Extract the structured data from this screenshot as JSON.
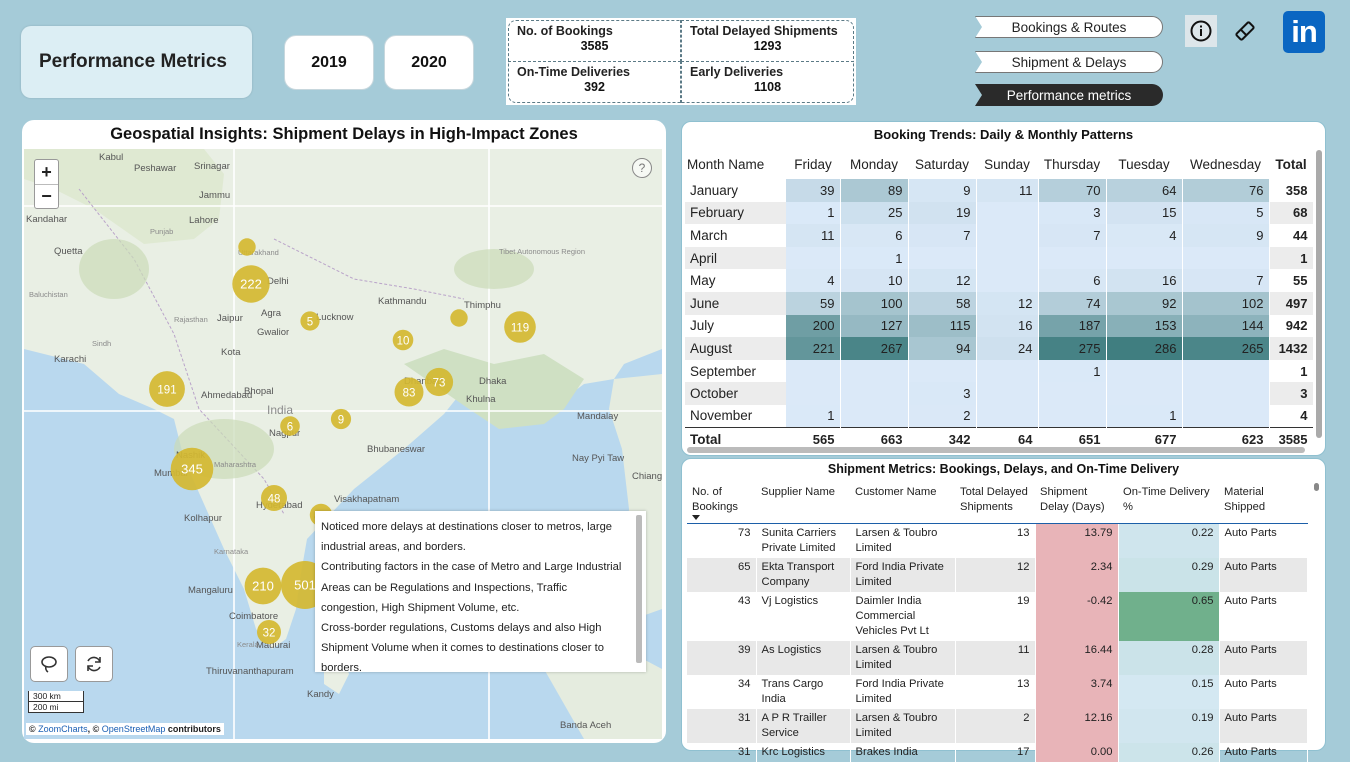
{
  "header": {
    "title": "Performance Metrics",
    "years": [
      "2019",
      "2020"
    ],
    "kpis": [
      {
        "label": "No. of Bookings",
        "value": "3585"
      },
      {
        "label": "Total Delayed Shipments",
        "value": "1293"
      },
      {
        "label": "On-Time Deliveries",
        "value": "392"
      },
      {
        "label": "Early Deliveries",
        "value": "1108"
      }
    ],
    "nav": [
      "Bookings & Routes",
      "Shipment & Delays",
      "Performance metrics"
    ],
    "linkedin": "in"
  },
  "map": {
    "title": "Geospatial Insights: Shipment Delays in High-Impact Zones",
    "zoom_in": "+",
    "zoom_out": "−",
    "help": "?",
    "scale_km": "300 km",
    "scale_mi": "200 mi",
    "attribution_prefix": "© ",
    "attribution_zc": "ZoomCharts",
    "attribution_mid": ", © ",
    "attribution_osm": "OpenStreetMap",
    "attribution_suffix": " contributors",
    "labels": [
      "Kabul",
      "Peshawar",
      "Srinagar",
      "Jammu",
      "Kandahar",
      "Lahore",
      "Quetta",
      "Delhi",
      "Jaipur",
      "Agra",
      "Lucknow",
      "Gwalior",
      "Kathmandu",
      "Thimphu",
      "Karachi",
      "Kota",
      "Ahmedabad",
      "Bhopal",
      "India",
      "Dhanbad",
      "Dhaka",
      "Khulna",
      "Nagpur",
      "Bhubaneswar",
      "Mandalay",
      "Nashik",
      "Mumbai",
      "Hyderabad",
      "Visakhapatnam",
      "Kolhapur",
      "Vijayawada",
      "Mangaluru",
      "Chennai",
      "Coimbatore",
      "Madurai",
      "Thiruvananthapuram",
      "Kandy",
      "Banda Aceh",
      "Nay Pyi Taw",
      "Chiang",
      "Baluchistan",
      "Sindh",
      "Punjab",
      "Rajasthan",
      "Maharashtra",
      "Karnataka",
      "Kerala",
      "Tibet Autonomous Region",
      "Uttarakhand"
    ],
    "clusters": [
      {
        "label": "",
        "value": 1
      },
      {
        "label": "222",
        "value": 222
      },
      {
        "label": "5",
        "value": 5
      },
      {
        "label": "",
        "value": 1
      },
      {
        "label": "119",
        "value": 119
      },
      {
        "label": "10",
        "value": 10
      },
      {
        "label": "191",
        "value": 191
      },
      {
        "label": "83",
        "value": 83
      },
      {
        "label": "73",
        "value": 73
      },
      {
        "label": "9",
        "value": 9
      },
      {
        "label": "6",
        "value": 6
      },
      {
        "label": "345",
        "value": 345
      },
      {
        "label": "48",
        "value": 48
      },
      {
        "label": "",
        "value": 20
      },
      {
        "label": "210",
        "value": 210
      },
      {
        "label": "501",
        "value": 501
      },
      {
        "label": "32",
        "value": 32
      }
    ],
    "note": [
      "Noticed more delays at destinations closer to metros, large industrial areas, and borders.",
      "Contributing factors in the case of Metro and Large Industrial Areas can be Regulations and Inspections, Traffic congestion, High Shipment Volume, etc.",
      "Cross-border regulations, Customs delays and also High Shipment Volume when it comes to destinations closer to borders."
    ]
  },
  "booking_trends": {
    "title": "Booking Trends: Daily & Monthly Patterns",
    "columns": [
      "Month Name",
      "Friday",
      "Monday",
      "Saturday",
      "Sunday",
      "Thursday",
      "Tuesday",
      "Wednesday",
      "Total"
    ],
    "rows": [
      {
        "month": "January",
        "values": [
          "39",
          "89",
          "9",
          "11",
          "70",
          "64",
          "76"
        ],
        "total": "358"
      },
      {
        "month": "February",
        "values": [
          "1",
          "25",
          "19",
          "",
          "3",
          "15",
          "5"
        ],
        "total": "68"
      },
      {
        "month": "March",
        "values": [
          "11",
          "6",
          "7",
          "",
          "7",
          "4",
          "9"
        ],
        "total": "44"
      },
      {
        "month": "April",
        "values": [
          "",
          "1",
          "",
          "",
          "",
          "",
          ""
        ],
        "total": "1"
      },
      {
        "month": "May",
        "values": [
          "4",
          "10",
          "12",
          "",
          "6",
          "16",
          "7"
        ],
        "total": "55"
      },
      {
        "month": "June",
        "values": [
          "59",
          "100",
          "58",
          "12",
          "74",
          "92",
          "102"
        ],
        "total": "497"
      },
      {
        "month": "July",
        "values": [
          "200",
          "127",
          "115",
          "16",
          "187",
          "153",
          "144"
        ],
        "total": "942"
      },
      {
        "month": "August",
        "values": [
          "221",
          "267",
          "94",
          "24",
          "275",
          "286",
          "265"
        ],
        "total": "1432"
      },
      {
        "month": "September",
        "values": [
          "",
          "",
          "",
          "",
          "1",
          "",
          ""
        ],
        "total": "1"
      },
      {
        "month": "October",
        "values": [
          "",
          "",
          "3",
          "",
          "",
          "",
          ""
        ],
        "total": "3"
      },
      {
        "month": "November",
        "values": [
          "1",
          "",
          "2",
          "",
          "",
          "1",
          ""
        ],
        "total": "4"
      }
    ],
    "totals": {
      "label": "Total",
      "values": [
        "565",
        "663",
        "342",
        "64",
        "651",
        "677",
        "623"
      ],
      "total": "3585"
    }
  },
  "shipment_metrics": {
    "title": "Shipment Metrics: Bookings, Delays, and On-Time Delivery",
    "columns": [
      "No. of Bookings",
      "Supplier Name",
      "Customer Name",
      "Total Delayed Shipments",
      "Shipment Delay (Days)",
      "On-Time Delivery %",
      "Material Shipped"
    ],
    "rows": [
      {
        "bookings": "73",
        "supplier": "Sunita Carriers Private Limited",
        "customer": "Larsen & Toubro Limited",
        "delayed": "13",
        "delay_days": "13.79",
        "ontime": "0.22",
        "material": "Auto Parts"
      },
      {
        "bookings": "65",
        "supplier": "Ekta Transport Company",
        "customer": "Ford India Private Limited",
        "delayed": "12",
        "delay_days": "2.34",
        "ontime": "0.29",
        "material": "Auto Parts"
      },
      {
        "bookings": "43",
        "supplier": "Vj Logistics",
        "customer": "Daimler India Commercial Vehicles Pvt Lt",
        "delayed": "19",
        "delay_days": "-0.42",
        "ontime": "0.65",
        "material": "Auto Parts"
      },
      {
        "bookings": "39",
        "supplier": "As Logistics",
        "customer": "Larsen & Toubro Limited",
        "delayed": "11",
        "delay_days": "16.44",
        "ontime": "0.28",
        "material": "Auto Parts"
      },
      {
        "bookings": "34",
        "supplier": "Trans Cargo India",
        "customer": "Ford India Private Limited",
        "delayed": "13",
        "delay_days": "3.74",
        "ontime": "0.15",
        "material": "Auto Parts"
      },
      {
        "bookings": "31",
        "supplier": "A P R Trailler Service",
        "customer": "Larsen & Toubro Limited",
        "delayed": "2",
        "delay_days": "12.16",
        "ontime": "0.19",
        "material": "Auto Parts"
      },
      {
        "bookings": "31",
        "supplier": "Krc Logistics",
        "customer": "Brakes India",
        "delayed": "17",
        "delay_days": "0.00",
        "ontime": "0.26",
        "material": "Auto Parts"
      }
    ]
  }
}
